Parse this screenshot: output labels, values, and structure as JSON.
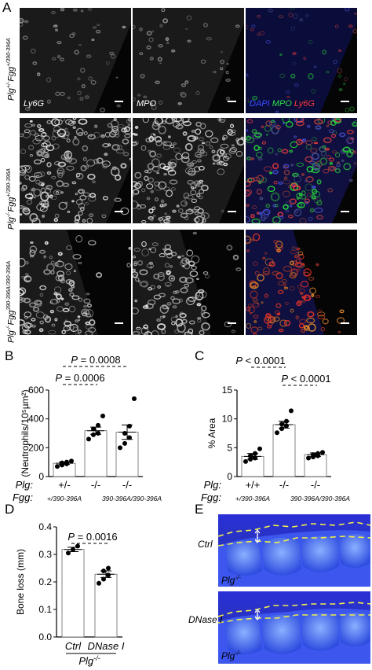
{
  "panels": {
    "a": "A",
    "b": "B",
    "c": "C",
    "d": "D",
    "e": "E"
  },
  "panel_a": {
    "rows": [
      {
        "genotype_prefix": "Plg",
        "plg_sup": "+/-",
        "fgg": "Fgg",
        "fgg_sup": "+/390-396A"
      },
      {
        "genotype_prefix": "Plg",
        "plg_sup": "-/-",
        "fgg": "Fgg",
        "fgg_sup": "+/390-396A"
      },
      {
        "genotype_prefix": "Plg",
        "plg_sup": "-/-",
        "fgg": "Fgg",
        "fgg_sup": "390-396A/390-396A"
      }
    ],
    "stain_labels": {
      "ly6g": "Ly6G",
      "mpo": "MPO",
      "dapi": "DAPI",
      "mpo_merge": "MPO",
      "ly6g_merge": "Ly6G"
    },
    "colors": {
      "dapi": "#3b4cff",
      "mpo": "#2ee04a",
      "ly6g": "#ff3b3b"
    }
  },
  "chart_data": [
    {
      "id": "B",
      "type": "bar",
      "ylabel": "(Neutrophils/10⁵µm²)",
      "ylim": [
        0,
        600
      ],
      "yticks": [
        "0",
        "200",
        "400",
        "600"
      ],
      "row_labels": {
        "plg": "Plg:",
        "fgg": "Fgg:"
      },
      "categories": [
        {
          "plg": "+/-",
          "fgg": "+/390-396A",
          "mean": 92,
          "sem": 8,
          "points": [
            70,
            80,
            88,
            95,
            100,
            108
          ]
        },
        {
          "plg": "-/-",
          "fgg": "",
          "mean": 318,
          "sem": 25,
          "points": [
            260,
            290,
            300,
            330,
            355,
            420
          ]
        },
        {
          "plg": "-/-",
          "fgg": "390-396A/390-396A",
          "mean": 308,
          "sem": 50,
          "points": [
            200,
            230,
            270,
            300,
            350,
            540
          ]
        }
      ],
      "annotations": [
        {
          "text": "P = 0.0008",
          "from": 0,
          "to": 2
        },
        {
          "text": "P = 0.0006",
          "from": 0,
          "to": 1
        }
      ]
    },
    {
      "id": "C",
      "type": "bar",
      "ylabel": "% Area",
      "ylim": [
        0,
        15
      ],
      "yticks": [
        "0",
        "5",
        "10",
        "15"
      ],
      "row_labels": {
        "plg": "Plg:",
        "fgg": "Fgg:"
      },
      "categories": [
        {
          "plg": "+/+",
          "fgg": "+/390-396A",
          "mean": 3.5,
          "sem": 0.5,
          "points": [
            2.6,
            3.0,
            3.2,
            3.6,
            4.0,
            4.8
          ]
        },
        {
          "plg": "-/-",
          "fgg": "",
          "mean": 9.0,
          "sem": 0.6,
          "points": [
            7.6,
            8.3,
            8.8,
            9.1,
            9.6,
            11.4
          ]
        },
        {
          "plg": "-/-",
          "fgg": "390-396A/390-396A",
          "mean": 3.8,
          "sem": 0.3,
          "points": [
            3.2,
            3.4,
            3.6,
            3.8,
            4.0,
            4.2
          ]
        }
      ],
      "annotations": [
        {
          "text": "P < 0.0001",
          "from": 0,
          "to": 1
        },
        {
          "text": "P < 0.0001",
          "from": 1,
          "to": 2
        }
      ]
    },
    {
      "id": "D",
      "type": "bar",
      "ylabel": "Bone loss (mm)",
      "ylim": [
        0.0,
        0.4
      ],
      "yticks": [
        "0.0",
        "0.1",
        "0.2",
        "0.3",
        "0.4"
      ],
      "categories": [
        {
          "label": "Ctrl",
          "mean": 0.318,
          "sem": 0.008,
          "points": [
            0.305,
            0.318,
            0.33
          ]
        },
        {
          "label": "DNase I",
          "mean": 0.228,
          "sem": 0.012,
          "points": [
            0.195,
            0.21,
            0.225,
            0.24,
            0.25
          ]
        }
      ],
      "group_label": "Plg",
      "group_label_sup": "-/-",
      "annotations": [
        {
          "text": "P = 0.0016",
          "from": 0,
          "to": 1
        }
      ]
    }
  ],
  "panel_e": {
    "images": [
      {
        "condition": "Ctrl",
        "genotype": "Plg",
        "genotype_sup": "-/-"
      },
      {
        "condition": "DNase I",
        "genotype": "Plg",
        "genotype_sup": "-/-"
      }
    ]
  }
}
